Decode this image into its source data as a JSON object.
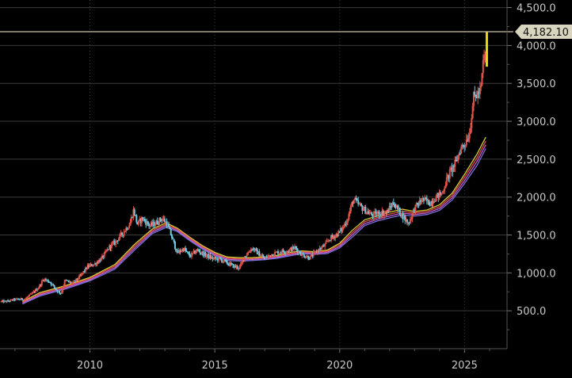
{
  "chart_data": {
    "type": "candlestick",
    "title": "",
    "xlabel": "",
    "ylabel": "",
    "ylim": [
      0,
      4600
    ],
    "xlim": [
      2006.4,
      2026.7
    ],
    "y_ticks": [
      500,
      1000,
      1500,
      2000,
      2500,
      3000,
      3500,
      4000,
      4500
    ],
    "y_tick_labels": [
      "500.0",
      "1,000.0",
      "1,500.0",
      "2,000.0",
      "2,500.0",
      "3,000.0",
      "3,500.0",
      "4,000.0",
      "4,500.0"
    ],
    "x_ticks": [
      2010,
      2015,
      2020,
      2025
    ],
    "x_tick_labels": [
      "2010",
      "2015",
      "2020",
      "2025"
    ],
    "grid": true,
    "last_price": 4182.1,
    "last_price_label": "4,182.10",
    "colors": {
      "background": "#000000",
      "grid": "#3a3a3a",
      "up": "#e0524a",
      "down": "#6ec9e0",
      "last_bar": "#e8d800",
      "price_line": "#c8c3a8",
      "price_label_bg": "#d9d4bd",
      "axis_text": "#c8c8c8",
      "ma_series": [
        "#d4cc3a",
        "#e0524a",
        "#c060d0",
        "#7a70d8"
      ]
    },
    "price_path": [
      [
        2006.45,
        620
      ],
      [
        2006.7,
        625
      ],
      [
        2007.0,
        650
      ],
      [
        2007.4,
        655
      ],
      [
        2007.7,
        730
      ],
      [
        2007.95,
        810
      ],
      [
        2008.15,
        920
      ],
      [
        2008.4,
        880
      ],
      [
        2008.7,
        760
      ],
      [
        2008.85,
        730
      ],
      [
        2009.0,
        900
      ],
      [
        2009.3,
        860
      ],
      [
        2009.6,
        950
      ],
      [
        2009.9,
        1080
      ],
      [
        2010.2,
        1120
      ],
      [
        2010.5,
        1200
      ],
      [
        2010.8,
        1350
      ],
      [
        2011.0,
        1400
      ],
      [
        2011.3,
        1520
      ],
      [
        2011.6,
        1650
      ],
      [
        2011.75,
        1830
      ],
      [
        2011.9,
        1640
      ],
      [
        2012.1,
        1720
      ],
      [
        2012.4,
        1620
      ],
      [
        2012.6,
        1650
      ],
      [
        2012.9,
        1720
      ],
      [
        2013.1,
        1640
      ],
      [
        2013.3,
        1450
      ],
      [
        2013.5,
        1260
      ],
      [
        2013.75,
        1320
      ],
      [
        2014.0,
        1220
      ],
      [
        2014.3,
        1300
      ],
      [
        2014.6,
        1240
      ],
      [
        2014.9,
        1190
      ],
      [
        2015.2,
        1180
      ],
      [
        2015.5,
        1130
      ],
      [
        2015.8,
        1080
      ],
      [
        2016.0,
        1070
      ],
      [
        2016.2,
        1220
      ],
      [
        2016.5,
        1330
      ],
      [
        2016.8,
        1240
      ],
      [
        2017.0,
        1190
      ],
      [
        2017.3,
        1250
      ],
      [
        2017.6,
        1280
      ],
      [
        2017.9,
        1290
      ],
      [
        2018.2,
        1330
      ],
      [
        2018.5,
        1240
      ],
      [
        2018.8,
        1200
      ],
      [
        2019.1,
        1290
      ],
      [
        2019.4,
        1360
      ],
      [
        2019.6,
        1450
      ],
      [
        2019.9,
        1510
      ],
      [
        2020.1,
        1580
      ],
      [
        2020.3,
        1700
      ],
      [
        2020.55,
        1970
      ],
      [
        2020.75,
        1900
      ],
      [
        2021.0,
        1830
      ],
      [
        2021.3,
        1760
      ],
      [
        2021.6,
        1790
      ],
      [
        2021.9,
        1800
      ],
      [
        2022.15,
        1930
      ],
      [
        2022.3,
        1850
      ],
      [
        2022.55,
        1740
      ],
      [
        2022.75,
        1650
      ],
      [
        2023.0,
        1850
      ],
      [
        2023.3,
        1970
      ],
      [
        2023.6,
        1920
      ],
      [
        2023.85,
        2000
      ],
      [
        2024.1,
        2050
      ],
      [
        2024.25,
        2200
      ],
      [
        2024.45,
        2350
      ],
      [
        2024.65,
        2450
      ],
      [
        2024.85,
        2650
      ],
      [
        2025.0,
        2700
      ],
      [
        2025.2,
        2850
      ],
      [
        2025.35,
        3300
      ],
      [
        2025.5,
        3350
      ],
      [
        2025.65,
        3400
      ],
      [
        2025.75,
        3800
      ],
      [
        2025.83,
        3900
      ]
    ],
    "moving_averages": [
      {
        "points": [
          [
            2007.3,
            620
          ],
          [
            2008.0,
            740
          ],
          [
            2009.0,
            830
          ],
          [
            2010.0,
            940
          ],
          [
            2011.0,
            1110
          ],
          [
            2011.8,
            1380
          ],
          [
            2012.5,
            1580
          ],
          [
            2013.05,
            1660
          ],
          [
            2013.5,
            1590
          ],
          [
            2014.0,
            1470
          ],
          [
            2014.5,
            1360
          ],
          [
            2015.0,
            1270
          ],
          [
            2015.5,
            1210
          ],
          [
            2016.0,
            1200
          ],
          [
            2016.5,
            1200
          ],
          [
            2017.0,
            1210
          ],
          [
            2017.5,
            1230
          ],
          [
            2018.0,
            1270
          ],
          [
            2018.5,
            1290
          ],
          [
            2019.0,
            1280
          ],
          [
            2019.5,
            1300
          ],
          [
            2020.0,
            1390
          ],
          [
            2020.5,
            1560
          ],
          [
            2021.0,
            1700
          ],
          [
            2021.5,
            1750
          ],
          [
            2022.0,
            1800
          ],
          [
            2022.5,
            1840
          ],
          [
            2023.0,
            1810
          ],
          [
            2023.5,
            1830
          ],
          [
            2024.0,
            1900
          ],
          [
            2024.5,
            2050
          ],
          [
            2025.0,
            2300
          ],
          [
            2025.5,
            2570
          ],
          [
            2025.85,
            2790
          ]
        ]
      },
      {
        "points": [
          [
            2007.3,
            610
          ],
          [
            2008.0,
            725
          ],
          [
            2009.0,
            815
          ],
          [
            2010.0,
            925
          ],
          [
            2011.0,
            1090
          ],
          [
            2011.8,
            1355
          ],
          [
            2012.5,
            1560
          ],
          [
            2013.05,
            1640
          ],
          [
            2013.5,
            1575
          ],
          [
            2014.0,
            1455
          ],
          [
            2014.5,
            1345
          ],
          [
            2015.0,
            1255
          ],
          [
            2015.5,
            1195
          ],
          [
            2016.0,
            1185
          ],
          [
            2016.5,
            1188
          ],
          [
            2017.0,
            1198
          ],
          [
            2017.5,
            1218
          ],
          [
            2018.0,
            1255
          ],
          [
            2018.5,
            1278
          ],
          [
            2019.0,
            1268
          ],
          [
            2019.5,
            1285
          ],
          [
            2020.0,
            1370
          ],
          [
            2020.5,
            1530
          ],
          [
            2021.0,
            1675
          ],
          [
            2021.5,
            1728
          ],
          [
            2022.0,
            1775
          ],
          [
            2022.5,
            1815
          ],
          [
            2023.0,
            1790
          ],
          [
            2023.5,
            1810
          ],
          [
            2024.0,
            1875
          ],
          [
            2024.5,
            2020
          ],
          [
            2025.0,
            2260
          ],
          [
            2025.5,
            2520
          ],
          [
            2025.85,
            2740
          ]
        ]
      },
      {
        "points": [
          [
            2007.3,
            600
          ],
          [
            2008.0,
            710
          ],
          [
            2009.0,
            800
          ],
          [
            2010.0,
            910
          ],
          [
            2011.0,
            1070
          ],
          [
            2011.8,
            1330
          ],
          [
            2012.5,
            1540
          ],
          [
            2013.05,
            1620
          ],
          [
            2013.5,
            1560
          ],
          [
            2014.0,
            1440
          ],
          [
            2014.5,
            1330
          ],
          [
            2015.0,
            1240
          ],
          [
            2015.5,
            1180
          ],
          [
            2016.0,
            1170
          ],
          [
            2016.5,
            1176
          ],
          [
            2017.0,
            1186
          ],
          [
            2017.5,
            1206
          ],
          [
            2018.0,
            1240
          ],
          [
            2018.5,
            1266
          ],
          [
            2019.0,
            1256
          ],
          [
            2019.5,
            1270
          ],
          [
            2020.0,
            1350
          ],
          [
            2020.5,
            1500
          ],
          [
            2021.0,
            1650
          ],
          [
            2021.5,
            1706
          ],
          [
            2022.0,
            1750
          ],
          [
            2022.5,
            1790
          ],
          [
            2023.0,
            1770
          ],
          [
            2023.5,
            1790
          ],
          [
            2024.0,
            1850
          ],
          [
            2024.5,
            1990
          ],
          [
            2025.0,
            2220
          ],
          [
            2025.5,
            2470
          ],
          [
            2025.85,
            2690
          ]
        ]
      },
      {
        "points": [
          [
            2007.3,
            590
          ],
          [
            2008.0,
            695
          ],
          [
            2009.0,
            785
          ],
          [
            2010.0,
            895
          ],
          [
            2011.0,
            1050
          ],
          [
            2011.8,
            1305
          ],
          [
            2012.5,
            1520
          ],
          [
            2013.05,
            1600
          ],
          [
            2013.5,
            1545
          ],
          [
            2014.0,
            1425
          ],
          [
            2014.5,
            1315
          ],
          [
            2015.0,
            1225
          ],
          [
            2015.5,
            1165
          ],
          [
            2016.0,
            1155
          ],
          [
            2016.5,
            1164
          ],
          [
            2017.0,
            1174
          ],
          [
            2017.5,
            1194
          ],
          [
            2018.0,
            1225
          ],
          [
            2018.5,
            1254
          ],
          [
            2019.0,
            1244
          ],
          [
            2019.5,
            1255
          ],
          [
            2020.0,
            1330
          ],
          [
            2020.5,
            1470
          ],
          [
            2021.0,
            1625
          ],
          [
            2021.5,
            1684
          ],
          [
            2022.0,
            1725
          ],
          [
            2022.5,
            1765
          ],
          [
            2023.0,
            1750
          ],
          [
            2023.5,
            1770
          ],
          [
            2024.0,
            1825
          ],
          [
            2024.5,
            1960
          ],
          [
            2025.0,
            2180
          ],
          [
            2025.5,
            2420
          ],
          [
            2025.85,
            2640
          ]
        ]
      }
    ]
  }
}
